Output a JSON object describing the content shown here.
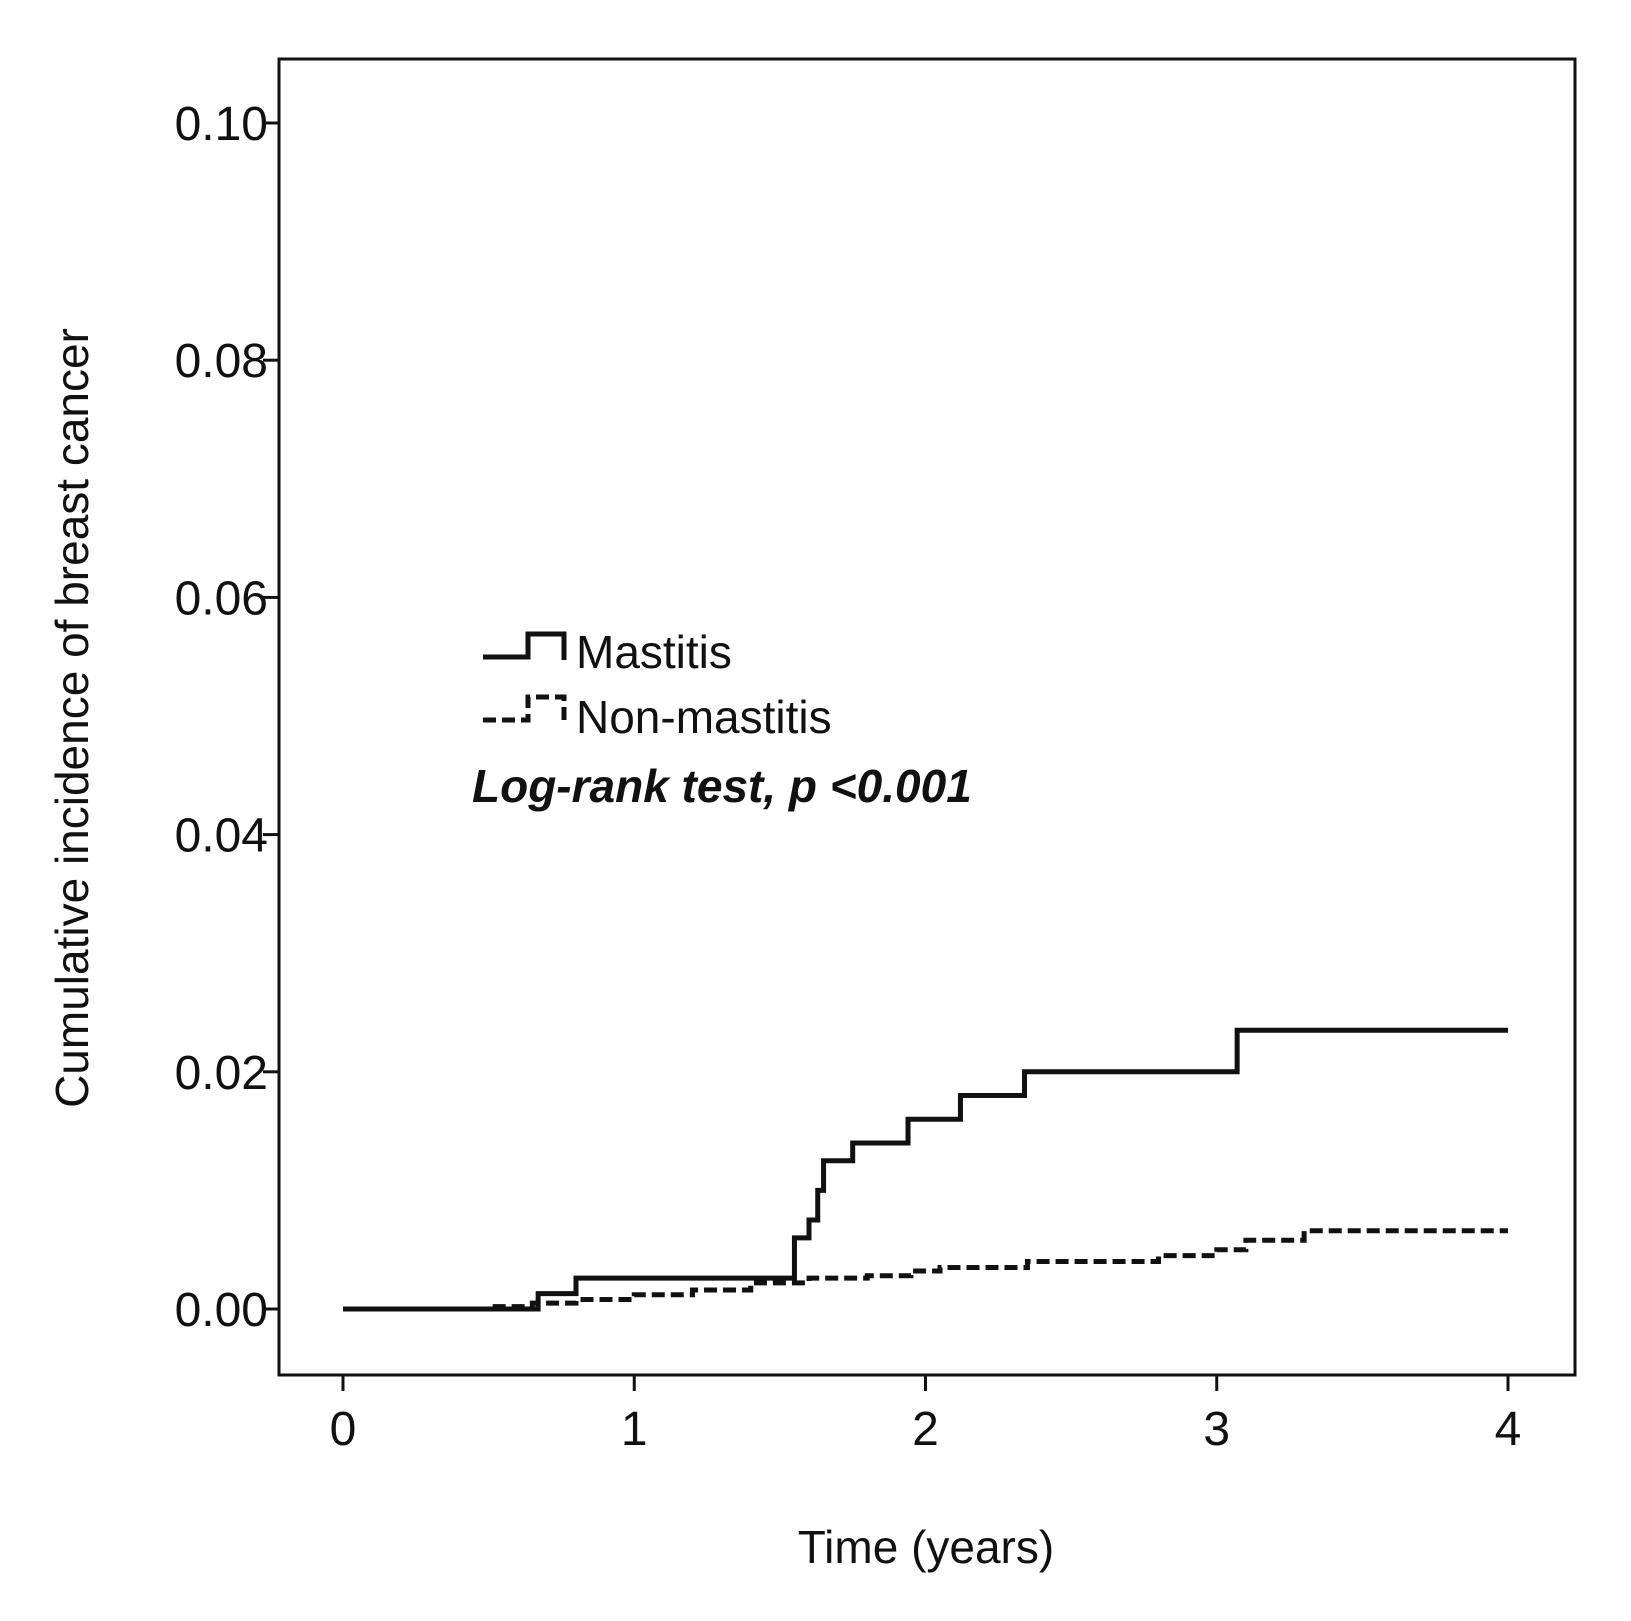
{
  "chart_data": {
    "type": "line",
    "title": "",
    "xlabel": "Time (years)",
    "ylabel": "Cumulative incidence of breast cancer",
    "xlim": [
      0,
      4
    ],
    "ylim": [
      0,
      0.1
    ],
    "x_ticks": [
      0,
      1,
      2,
      3,
      4
    ],
    "x_tick_labels": [
      "0",
      "1",
      "2",
      "3",
      "4"
    ],
    "y_ticks": [
      0,
      0.02,
      0.04,
      0.06,
      0.08,
      0.1
    ],
    "y_tick_labels": [
      "0.00",
      "0.02",
      "0.04",
      "0.06",
      "0.08",
      "0.10"
    ],
    "grid": false,
    "legend_position": "center-left",
    "annotation": "Log-rank test, p <0.001",
    "series": [
      {
        "name": "Mastitis",
        "style": "solid-step",
        "color": "#111111",
        "x": [
          0,
          0.67,
          0.8,
          1.5,
          1.55,
          1.6,
          1.63,
          1.65,
          1.75,
          1.94,
          2.12,
          2.34,
          3.07,
          4.0
        ],
        "y": [
          0,
          0.0013,
          0.0026,
          0.0026,
          0.006,
          0.0075,
          0.01,
          0.0125,
          0.014,
          0.016,
          0.018,
          0.02,
          0.0235,
          0.0235
        ]
      },
      {
        "name": "Non-mastitis",
        "style": "dashed-step",
        "color": "#111111",
        "x": [
          0,
          0.5,
          0.65,
          0.8,
          1.0,
          1.2,
          1.4,
          1.6,
          1.8,
          1.95,
          2.05,
          2.35,
          2.8,
          3.0,
          3.1,
          3.3,
          4.0
        ],
        "y": [
          0,
          0.0002,
          0.0005,
          0.0008,
          0.0012,
          0.0016,
          0.0022,
          0.0026,
          0.0028,
          0.0032,
          0.0035,
          0.004,
          0.0045,
          0.005,
          0.0058,
          0.0066,
          0.0066
        ]
      }
    ]
  }
}
